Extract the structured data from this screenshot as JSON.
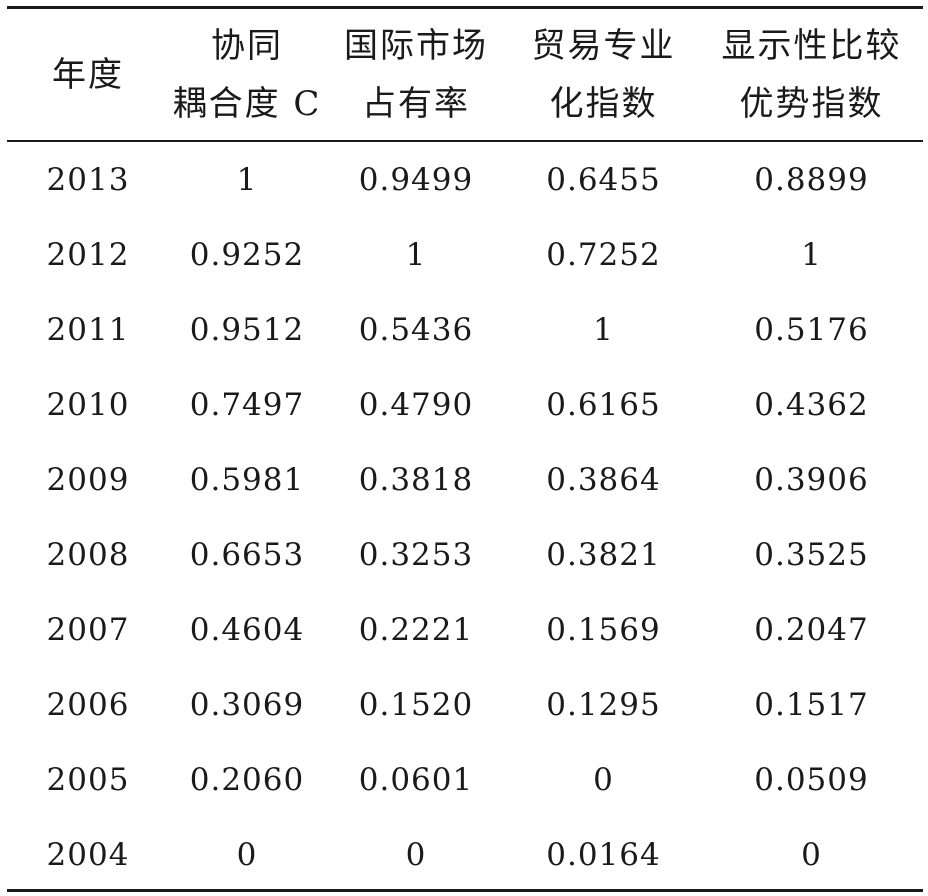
{
  "table": {
    "headers": [
      {
        "line1": "年度",
        "line2": ""
      },
      {
        "line1": "协同",
        "line2": "耦合度 C"
      },
      {
        "line1": "国际市场",
        "line2": "占有率"
      },
      {
        "line1": "贸易专业",
        "line2": "化指数"
      },
      {
        "line1": "显示性比较",
        "line2": "优势指数"
      }
    ],
    "rows": [
      [
        "2013",
        "1",
        "0.9499",
        "0.6455",
        "0.8899"
      ],
      [
        "2012",
        "0.9252",
        "1",
        "0.7252",
        "1"
      ],
      [
        "2011",
        "0.9512",
        "0.5436",
        "1",
        "0.5176"
      ],
      [
        "2010",
        "0.7497",
        "0.4790",
        "0.6165",
        "0.4362"
      ],
      [
        "2009",
        "0.5981",
        "0.3818",
        "0.3864",
        "0.3906"
      ],
      [
        "2008",
        "0.6653",
        "0.3253",
        "0.3821",
        "0.3525"
      ],
      [
        "2007",
        "0.4604",
        "0.2221",
        "0.1569",
        "0.2047"
      ],
      [
        "2006",
        "0.3069",
        "0.1520",
        "0.1295",
        "0.1517"
      ],
      [
        "2005",
        "0.2060",
        "0.0601",
        "0",
        "0.0509"
      ],
      [
        "2004",
        "0",
        "0",
        "0.0164",
        "0"
      ]
    ]
  }
}
